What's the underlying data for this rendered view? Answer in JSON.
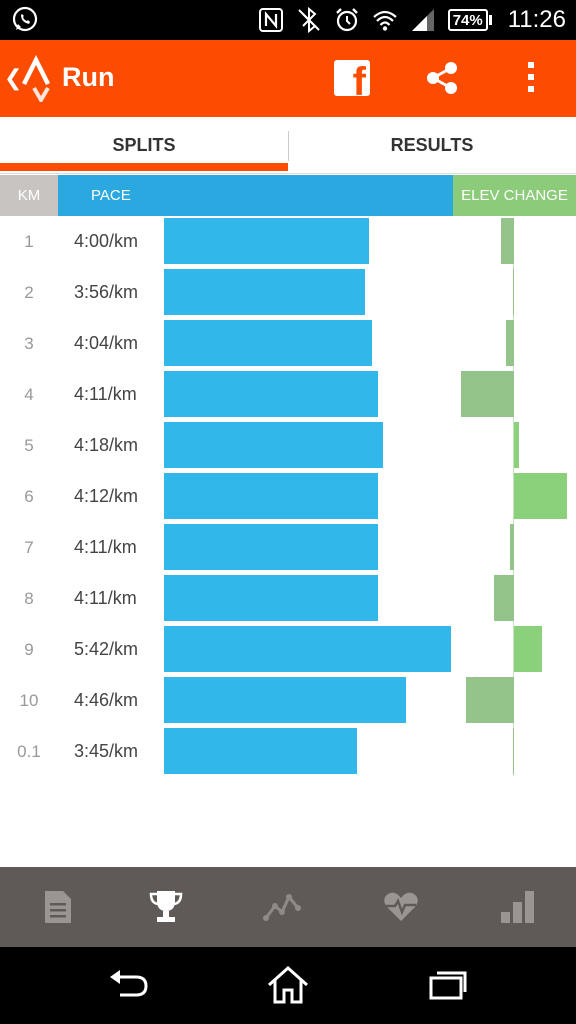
{
  "status_bar": {
    "time": "11:26",
    "battery": "74%"
  },
  "app_bar": {
    "title": "Run",
    "back_symbol": "❮"
  },
  "tabs": [
    {
      "label": "SPLITS",
      "active": true
    },
    {
      "label": "RESULTS",
      "active": false
    }
  ],
  "columns": {
    "km": "KM",
    "pace": "PACE",
    "elev": "ELEV CHANGE"
  },
  "colors": {
    "accent": "#fc4c02",
    "pace_bar": "#31b7ea",
    "pace_header": "#2ba8e0",
    "elev_up": "#8bd17c",
    "elev_down": "#95c48a",
    "km_header": "#c8c4c2",
    "bottom_nav": "#5f5a57"
  },
  "splits": [
    {
      "km": "1",
      "pace": "4:00/km",
      "pace_seconds": 240,
      "elev_change": -2.5
    },
    {
      "km": "2",
      "pace": "3:56/km",
      "pace_seconds": 236,
      "elev_change": -0.2
    },
    {
      "km": "3",
      "pace": "4:04/km",
      "pace_seconds": 244,
      "elev_change": -1.5
    },
    {
      "km": "4",
      "pace": "4:11/km",
      "pace_seconds": 251,
      "elev_change": -10.5
    },
    {
      "km": "5",
      "pace": "4:18/km",
      "pace_seconds": 258,
      "elev_change": 1.0
    },
    {
      "km": "6",
      "pace": "4:12/km",
      "pace_seconds": 252,
      "elev_change": 10.5
    },
    {
      "km": "7",
      "pace": "4:11/km",
      "pace_seconds": 251,
      "elev_change": -0.8
    },
    {
      "km": "8",
      "pace": "4:11/km",
      "pace_seconds": 251,
      "elev_change": -4.0
    },
    {
      "km": "9",
      "pace": "5:42/km",
      "pace_seconds": 342,
      "elev_change": 5.5
    },
    {
      "km": "10",
      "pace": "4:46/km",
      "pace_seconds": 286,
      "elev_change": -9.5
    },
    {
      "km": "0.1",
      "pace": "3:45/km",
      "pace_seconds": 225,
      "elev_change": -0.2
    }
  ],
  "bottom_nav": [
    {
      "icon": "document-icon",
      "active": false
    },
    {
      "icon": "trophy-icon",
      "active": true
    },
    {
      "icon": "activity-graph-icon",
      "active": false
    },
    {
      "icon": "heart-rate-icon",
      "active": false
    },
    {
      "icon": "bar-chart-icon",
      "active": false
    }
  ],
  "system_nav": [
    {
      "icon": "back-icon"
    },
    {
      "icon": "home-icon"
    },
    {
      "icon": "recents-icon"
    }
  ]
}
